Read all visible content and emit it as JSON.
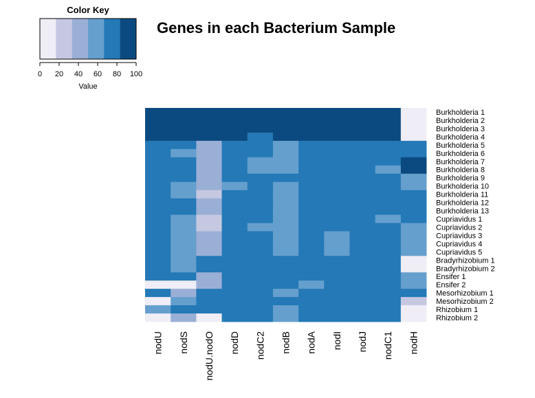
{
  "chart_data": {
    "type": "heatmap",
    "title": "Genes in each Bacterium Sample",
    "columns": [
      "nodU",
      "nodS",
      "nodU.nodO",
      "nodD",
      "nodC2",
      "nodB",
      "nodA",
      "nodI",
      "nodJ",
      "nodC1",
      "nodH"
    ],
    "rows": [
      "Burkholderia 1",
      "Burkholderia 2",
      "Burkholderia 3",
      "Burkholderia 4",
      "Burkholderia 5",
      "Burkholderia 6",
      "Burkholderia 7",
      "Burkholderia 8",
      "Burkholderia 9",
      "Burkholderia 10",
      "Burkholderia 11",
      "Burkholderia 12",
      "Burkholderia 13",
      "Cupriavidus 1",
      "Cupriavidus 2",
      "Cupriavidus 3",
      "Cupriavidus 4",
      "Cupriavidus 5",
      "Bradyrhizobium 1",
      "Bradyrhizobium 2",
      "Ensifer 1",
      "Ensifer 2",
      "Mesorhizobium 1",
      "Mesorhizobium 2",
      "Rhizobium 1",
      "Rhizobium 2"
    ],
    "values": [
      [
        90,
        90,
        90,
        90,
        90,
        90,
        90,
        90,
        90,
        90,
        10
      ],
      [
        90,
        90,
        90,
        90,
        90,
        90,
        90,
        90,
        90,
        90,
        10
      ],
      [
        90,
        90,
        90,
        90,
        90,
        90,
        90,
        90,
        90,
        90,
        10
      ],
      [
        90,
        90,
        90,
        90,
        75,
        90,
        90,
        90,
        90,
        90,
        10
      ],
      [
        75,
        75,
        45,
        75,
        75,
        60,
        75,
        75,
        75,
        75,
        75
      ],
      [
        75,
        60,
        45,
        75,
        75,
        60,
        75,
        75,
        75,
        75,
        75
      ],
      [
        75,
        75,
        45,
        75,
        60,
        60,
        75,
        75,
        75,
        75,
        95
      ],
      [
        75,
        75,
        45,
        75,
        60,
        60,
        75,
        75,
        75,
        60,
        95
      ],
      [
        75,
        75,
        45,
        75,
        75,
        75,
        75,
        75,
        75,
        75,
        60
      ],
      [
        75,
        60,
        45,
        60,
        75,
        60,
        75,
        75,
        75,
        75,
        60
      ],
      [
        75,
        60,
        25,
        75,
        75,
        60,
        75,
        75,
        75,
        75,
        75
      ],
      [
        75,
        75,
        45,
        75,
        75,
        60,
        75,
        75,
        75,
        75,
        75
      ],
      [
        75,
        75,
        45,
        75,
        75,
        60,
        75,
        75,
        75,
        75,
        75
      ],
      [
        75,
        60,
        25,
        75,
        75,
        60,
        75,
        75,
        75,
        60,
        75
      ],
      [
        75,
        60,
        25,
        75,
        60,
        60,
        75,
        75,
        75,
        75,
        60
      ],
      [
        75,
        60,
        45,
        75,
        75,
        60,
        75,
        60,
        75,
        75,
        60
      ],
      [
        75,
        60,
        45,
        75,
        75,
        60,
        75,
        60,
        75,
        75,
        60
      ],
      [
        75,
        60,
        45,
        75,
        75,
        60,
        75,
        60,
        75,
        75,
        60
      ],
      [
        75,
        60,
        75,
        75,
        75,
        75,
        75,
        75,
        75,
        75,
        10
      ],
      [
        75,
        60,
        75,
        75,
        75,
        75,
        75,
        75,
        75,
        75,
        10
      ],
      [
        75,
        75,
        45,
        75,
        75,
        75,
        75,
        75,
        75,
        75,
        60
      ],
      [
        10,
        10,
        45,
        75,
        75,
        75,
        60,
        75,
        75,
        75,
        60
      ],
      [
        75,
        45,
        75,
        75,
        75,
        60,
        75,
        75,
        75,
        75,
        75
      ],
      [
        10,
        60,
        75,
        75,
        75,
        75,
        75,
        75,
        75,
        75,
        25
      ],
      [
        60,
        75,
        75,
        75,
        75,
        60,
        75,
        75,
        75,
        75,
        10
      ],
      [
        10,
        45,
        10,
        75,
        75,
        60,
        75,
        75,
        75,
        75,
        10
      ]
    ],
    "color_key": {
      "title": "Color Key",
      "xlabel": "Value",
      "ticks": [
        0,
        20,
        40,
        60,
        80,
        100
      ],
      "range": [
        0,
        100
      ],
      "colors": [
        "#EFEDF5",
        "#C6C8E2",
        "#9AAFD6",
        "#659FCE",
        "#2479B6",
        "#0B4A80"
      ]
    },
    "legend": "top-left"
  }
}
